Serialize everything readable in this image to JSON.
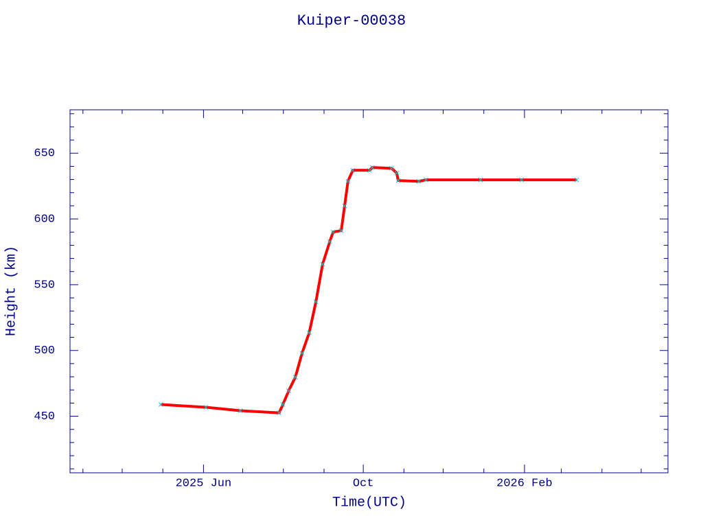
{
  "chart_data": {
    "type": "line",
    "title": "Kuiper-00038",
    "x_label": "Time(UTC)",
    "y_label": "Height (km)",
    "x": [
      2025.325,
      2025.419,
      2025.491,
      2025.572,
      2025.58,
      2025.592,
      2025.606,
      2025.62,
      2025.635,
      2025.649,
      2025.663,
      2025.678,
      2025.685,
      2025.702,
      2025.709,
      2025.716,
      2025.726,
      2025.761,
      2025.767,
      2025.807,
      2025.818,
      2025.821,
      2025.864,
      2025.879,
      2025.993,
      2026.079,
      2026.194
    ],
    "series": [
      {
        "name": "Height",
        "color": "#ff0000",
        "values": [
          458.9,
          456.8,
          454.2,
          452.6,
          458.9,
          469.3,
          479.7,
          497.9,
          513.5,
          537.0,
          565.6,
          582.8,
          590.1,
          591.1,
          609.9,
          628.6,
          637.0,
          637.0,
          639.1,
          638.5,
          634.9,
          629.2,
          628.6,
          629.7,
          629.7,
          629.7,
          629.7
        ]
      }
    ],
    "xlim": [
      2025.135,
      2026.385
    ],
    "xticks": [
      {
        "value": 2025.414,
        "label": "2025 Jun"
      },
      {
        "value": 2025.748,
        "label": "Oct"
      },
      {
        "value": 2026.085,
        "label": "2026 Feb"
      }
    ],
    "xminorticks": [
      2025.162,
      2025.244,
      2025.329,
      2025.496,
      2025.581,
      2025.666,
      2025.833,
      2025.915,
      2026.0,
      2026.162,
      2026.247,
      2026.329
    ],
    "ylim": [
      407,
      683
    ],
    "yticks": [
      450,
      500,
      550,
      600,
      650
    ],
    "yminorticks": [
      410,
      420,
      430,
      440,
      460,
      470,
      480,
      490,
      510,
      520,
      530,
      540,
      560,
      570,
      580,
      590,
      610,
      620,
      630,
      640,
      660,
      670,
      680
    ],
    "axis_color": "#00008b",
    "marker_color": "#00c8d0"
  }
}
